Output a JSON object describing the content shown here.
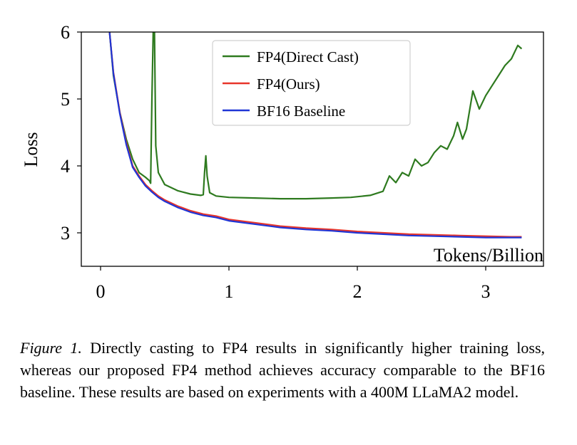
{
  "chart_data": {
    "type": "line",
    "xlabel": "Tokens/Billion",
    "ylabel": "Loss",
    "xlim": [
      -0.15,
      3.45
    ],
    "ylim": [
      2.5,
      6.0
    ],
    "xticks": [
      0,
      1,
      2,
      3
    ],
    "yticks": [
      3,
      4,
      5,
      6
    ],
    "xtick_labels": [
      "0",
      "1",
      "2",
      "3"
    ],
    "ytick_labels": [
      "3",
      "4",
      "5",
      "6"
    ],
    "grid": false,
    "legend": "upper-center",
    "series": [
      {
        "name": "FP4(Direct Cast)",
        "color": "#2e7a1f",
        "x": [
          0.07,
          0.1,
          0.15,
          0.2,
          0.25,
          0.3,
          0.35,
          0.38,
          0.39,
          0.4,
          0.41,
          0.42,
          0.43,
          0.45,
          0.5,
          0.6,
          0.7,
          0.78,
          0.8,
          0.81,
          0.82,
          0.83,
          0.85,
          0.9,
          1.0,
          1.2,
          1.4,
          1.6,
          1.8,
          1.95,
          2.1,
          2.2,
          2.25,
          2.3,
          2.35,
          2.4,
          2.45,
          2.5,
          2.55,
          2.6,
          2.65,
          2.7,
          2.75,
          2.78,
          2.82,
          2.85,
          2.9,
          2.95,
          3.0,
          3.05,
          3.1,
          3.15,
          3.2,
          3.25,
          3.28
        ],
        "y": [
          6.0,
          5.35,
          4.8,
          4.4,
          4.1,
          3.9,
          3.83,
          3.78,
          3.74,
          5.0,
          6.0,
          6.0,
          4.3,
          3.9,
          3.72,
          3.63,
          3.58,
          3.56,
          3.57,
          3.9,
          4.15,
          3.85,
          3.6,
          3.55,
          3.53,
          3.52,
          3.51,
          3.51,
          3.52,
          3.53,
          3.56,
          3.62,
          3.85,
          3.75,
          3.9,
          3.85,
          4.1,
          4.0,
          4.05,
          4.2,
          4.3,
          4.25,
          4.45,
          4.65,
          4.4,
          4.55,
          5.12,
          4.85,
          5.05,
          5.2,
          5.35,
          5.5,
          5.6,
          5.8,
          5.75
        ]
      },
      {
        "name": "FP4(Ours)",
        "color": "#e8352a",
        "x": [
          0.07,
          0.1,
          0.15,
          0.2,
          0.25,
          0.3,
          0.35,
          0.4,
          0.45,
          0.5,
          0.6,
          0.7,
          0.8,
          0.9,
          1.0,
          1.2,
          1.4,
          1.6,
          1.8,
          2.0,
          2.2,
          2.4,
          2.6,
          2.8,
          3.0,
          3.2,
          3.28
        ],
        "y": [
          6.0,
          5.4,
          4.8,
          4.35,
          4.0,
          3.85,
          3.72,
          3.63,
          3.55,
          3.49,
          3.4,
          3.33,
          3.28,
          3.25,
          3.2,
          3.15,
          3.1,
          3.07,
          3.05,
          3.02,
          3.0,
          2.98,
          2.97,
          2.96,
          2.95,
          2.94,
          2.94
        ]
      },
      {
        "name": "BF16 Baseline",
        "color": "#1f35d6",
        "x": [
          0.07,
          0.1,
          0.15,
          0.2,
          0.25,
          0.3,
          0.35,
          0.4,
          0.45,
          0.5,
          0.6,
          0.7,
          0.8,
          0.9,
          1.0,
          1.2,
          1.4,
          1.6,
          1.8,
          2.0,
          2.2,
          2.4,
          2.6,
          2.8,
          3.0,
          3.2,
          3.28
        ],
        "y": [
          6.0,
          5.38,
          4.78,
          4.32,
          3.98,
          3.83,
          3.7,
          3.61,
          3.53,
          3.47,
          3.38,
          3.31,
          3.26,
          3.23,
          3.18,
          3.13,
          3.08,
          3.05,
          3.03,
          3.0,
          2.98,
          2.96,
          2.95,
          2.94,
          2.93,
          2.93,
          2.93
        ]
      }
    ]
  },
  "caption": {
    "label": "Figure 1.",
    "text": " Directly casting to FP4 results in significantly higher training loss, whereas our proposed FP4 method achieves accuracy comparable to the BF16 baseline.  These results are based on experiments with a 400M LLaMA2 model."
  }
}
